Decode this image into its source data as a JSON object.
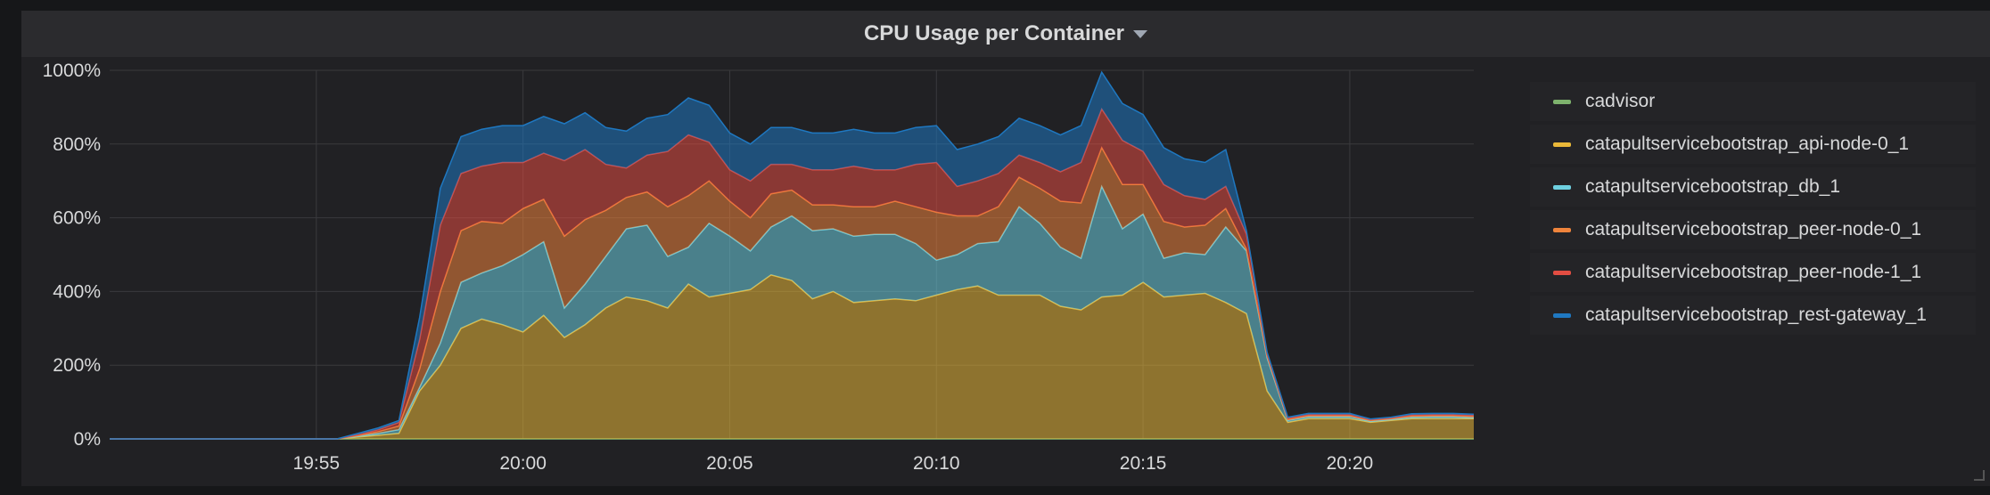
{
  "panel": {
    "title": "CPU Usage per Container"
  },
  "colors": {
    "grid": "#3a3a3d",
    "series": {
      "cadvisor": "#7eb26d",
      "api": "#eab839",
      "db": "#6ed0e0",
      "peer0": "#ef843c",
      "peer1": "#e24d42",
      "gateway": "#1f78c1"
    }
  },
  "chart_data": {
    "type": "area",
    "stacked": true,
    "title": "CPU Usage per Container",
    "xlabel": "",
    "ylabel": "",
    "y_unit": "%",
    "ylim": [
      0,
      1000
    ],
    "y_ticks": [
      "0%",
      "200%",
      "400%",
      "600%",
      "800%",
      "1000%"
    ],
    "y_tick_values": [
      0,
      200,
      400,
      600,
      800,
      1000
    ],
    "xlim": [
      1190,
      1223
    ],
    "x_ticks": [
      "19:55",
      "20:00",
      "20:05",
      "20:10",
      "20:15",
      "20:20"
    ],
    "x_tick_values": [
      1195,
      1200,
      1205,
      1210,
      1215,
      1220
    ],
    "x": [
      1190,
      1190.5,
      1191,
      1191.5,
      1192,
      1192.5,
      1193,
      1193.5,
      1194,
      1194.5,
      1195,
      1195.5,
      1196,
      1196.5,
      1197,
      1197.5,
      1198,
      1198.5,
      1199,
      1199.5,
      1200,
      1200.5,
      1201,
      1201.5,
      1202,
      1202.5,
      1203,
      1203.5,
      1204,
      1204.5,
      1205,
      1205.5,
      1206,
      1206.5,
      1207,
      1207.5,
      1208,
      1208.5,
      1209,
      1209.5,
      1210,
      1210.5,
      1211,
      1211.5,
      1212,
      1212.5,
      1213,
      1213.5,
      1214,
      1214.5,
      1215,
      1215.5,
      1216,
      1216.5,
      1217,
      1217.5,
      1218,
      1218.5,
      1219,
      1219.5,
      1220,
      1220.5,
      1221,
      1221.5,
      1222,
      1222.5,
      1223
    ],
    "series": [
      {
        "name": "cadvisor",
        "values": [
          0,
          0,
          0,
          0,
          0,
          0,
          0,
          0,
          0,
          0,
          0,
          0,
          0,
          0,
          0,
          0,
          0,
          0,
          0,
          0,
          0,
          0,
          0,
          0,
          0,
          0,
          0,
          0,
          0,
          0,
          0,
          0,
          0,
          0,
          0,
          0,
          0,
          0,
          0,
          0,
          0,
          0,
          0,
          0,
          0,
          0,
          0,
          0,
          0,
          0,
          0,
          0,
          0,
          0,
          0,
          0,
          0,
          0,
          0,
          0,
          0,
          0,
          0,
          0,
          0,
          0,
          0
        ]
      },
      {
        "name": "catapultservicebootstrap_api-node-0_1",
        "values": [
          0,
          0,
          0,
          0,
          0,
          0,
          0,
          0,
          0,
          0,
          0,
          0,
          5,
          10,
          15,
          130,
          200,
          300,
          325,
          310,
          290,
          335,
          275,
          310,
          355,
          385,
          375,
          355,
          420,
          385,
          395,
          405,
          445,
          430,
          380,
          400,
          370,
          375,
          380,
          375,
          390,
          405,
          415,
          390,
          390,
          390,
          360,
          350,
          385,
          390,
          425,
          385,
          390,
          395,
          370,
          340,
          130,
          45,
          55,
          55,
          55,
          45,
          50,
          55,
          55,
          55,
          55
        ]
      },
      {
        "name": "catapultservicebootstrap_db_1",
        "values": [
          0,
          0,
          0,
          0,
          0,
          0,
          0,
          0,
          0,
          0,
          0,
          0,
          2,
          5,
          10,
          10,
          60,
          125,
          125,
          160,
          210,
          200,
          80,
          110,
          140,
          185,
          205,
          140,
          100,
          200,
          155,
          105,
          130,
          175,
          185,
          170,
          180,
          180,
          175,
          155,
          95,
          95,
          115,
          145,
          240,
          195,
          160,
          140,
          300,
          180,
          185,
          105,
          115,
          105,
          205,
          170,
          90,
          5,
          5,
          5,
          5,
          3,
          3,
          4,
          5,
          5,
          3
        ]
      },
      {
        "name": "catapultservicebootstrap_peer-node-0_1",
        "values": [
          0,
          0,
          0,
          0,
          0,
          0,
          0,
          0,
          0,
          0,
          0,
          0,
          2,
          5,
          10,
          50,
          140,
          140,
          140,
          115,
          125,
          115,
          195,
          175,
          125,
          85,
          90,
          135,
          140,
          115,
          95,
          90,
          90,
          70,
          70,
          65,
          80,
          75,
          90,
          100,
          130,
          105,
          75,
          95,
          80,
          95,
          125,
          150,
          105,
          120,
          80,
          100,
          70,
          80,
          50,
          5,
          5,
          3,
          3,
          3,
          3,
          2,
          2,
          3,
          3,
          3,
          3
        ]
      },
      {
        "name": "catapultservicebootstrap_peer-node-1_1",
        "values": [
          0,
          0,
          0,
          0,
          0,
          0,
          0,
          0,
          0,
          0,
          0,
          0,
          2,
          5,
          10,
          80,
          180,
          155,
          150,
          165,
          125,
          125,
          205,
          190,
          125,
          80,
          100,
          150,
          165,
          105,
          85,
          100,
          80,
          70,
          95,
          95,
          110,
          100,
          85,
          115,
          135,
          80,
          95,
          90,
          60,
          70,
          80,
          110,
          105,
          120,
          90,
          100,
          85,
          70,
          60,
          40,
          5,
          3,
          3,
          3,
          3,
          2,
          2,
          3,
          3,
          3,
          3
        ]
      },
      {
        "name": "catapultservicebootstrap_rest-gateway_1",
        "values": [
          0,
          0,
          0,
          0,
          0,
          0,
          0,
          0,
          0,
          0,
          0,
          0,
          4,
          5,
          5,
          60,
          100,
          100,
          100,
          100,
          100,
          100,
          100,
          100,
          100,
          100,
          100,
          100,
          100,
          100,
          100,
          100,
          100,
          100,
          100,
          100,
          100,
          100,
          100,
          100,
          100,
          100,
          100,
          100,
          100,
          100,
          100,
          100,
          100,
          100,
          100,
          100,
          100,
          100,
          100,
          10,
          5,
          3,
          3,
          3,
          3,
          2,
          2,
          3,
          3,
          3,
          3
        ]
      }
    ],
    "legend": [
      "cadvisor",
      "catapultservicebootstrap_api-node-0_1",
      "catapultservicebootstrap_db_1",
      "catapultservicebootstrap_peer-node-0_1",
      "catapultservicebootstrap_peer-node-1_1",
      "catapultservicebootstrap_rest-gateway_1"
    ],
    "legend_position": "right",
    "grid": true
  }
}
